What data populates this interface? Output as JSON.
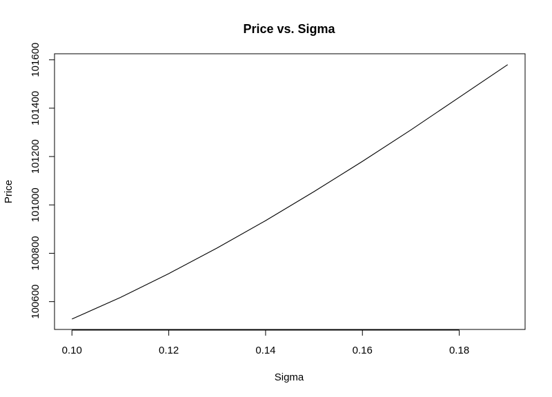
{
  "chart_data": {
    "type": "line",
    "title": "Price vs. Sigma",
    "xlabel": "Sigma",
    "ylabel": "Price",
    "xlim": [
      0.0964,
      0.1936
    ],
    "ylim": [
      100485,
      101625
    ],
    "x_ticks": [
      0.1,
      0.12,
      0.14,
      0.16,
      0.18
    ],
    "x_tick_labels": [
      "0.10",
      "0.12",
      "0.14",
      "0.16",
      "0.18"
    ],
    "y_ticks": [
      100600,
      100800,
      101000,
      101200,
      101400,
      101600
    ],
    "y_tick_labels": [
      "100600",
      "100800",
      "101000",
      "101200",
      "101400",
      "101600"
    ],
    "grid": false,
    "series": [
      {
        "x": [
          0.1,
          0.11,
          0.12,
          0.13,
          0.14,
          0.15,
          0.16,
          0.17,
          0.18,
          0.19
        ],
        "values": [
          100528,
          100617,
          100716,
          100822,
          100935,
          101055,
          101180,
          101310,
          101445,
          101580
        ],
        "color": "#000000"
      }
    ]
  }
}
